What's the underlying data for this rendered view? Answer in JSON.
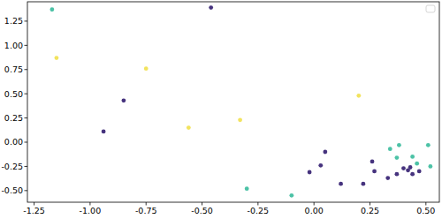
{
  "chart_data": {
    "type": "scatter",
    "series": [
      {
        "color": "#4cc2a6",
        "marker": "circle",
        "x": [
          -1.17,
          -0.3,
          -0.1,
          0.34,
          0.37,
          0.38,
          0.44,
          0.46,
          0.51,
          0.52
        ],
        "values": [
          1.37,
          -0.48,
          -0.55,
          -0.07,
          -0.16,
          -0.03,
          -0.15,
          -0.22,
          -0.03,
          -0.25
        ]
      },
      {
        "color": "#46337e",
        "marker": "circle",
        "x": [
          -0.46,
          -0.85,
          -0.94,
          0.05,
          0.03,
          -0.02,
          0.12,
          0.22,
          0.26,
          0.27,
          0.33,
          0.37,
          0.4,
          0.42,
          0.43,
          0.44,
          0.47
        ],
        "values": [
          1.39,
          0.43,
          0.11,
          -0.1,
          -0.24,
          -0.31,
          -0.43,
          -0.43,
          -0.2,
          -0.3,
          -0.37,
          -0.33,
          -0.27,
          -0.29,
          -0.26,
          -0.33,
          -0.3
        ]
      },
      {
        "color": "#f2e35e",
        "marker": "circle",
        "x": [
          -1.15,
          -0.75,
          -0.56,
          -0.33,
          0.2
        ],
        "values": [
          0.87,
          0.76,
          0.15,
          0.23,
          0.48
        ]
      }
    ],
    "xlim": [
      -1.28,
      0.56
    ],
    "ylim": [
      -0.62,
      1.45
    ],
    "xticks": [
      -1.25,
      {
        "value": -1,
        "label": "-1.00"
      },
      -0.75,
      {
        "value": -0.5,
        "label": "-0.50"
      },
      -0.25,
      {
        "value": 0,
        "label": "0.00"
      },
      0.25,
      {
        "value": 0.5,
        "label": "0.50"
      }
    ],
    "yticks": [
      {
        "value": -0.5,
        "label": "-0.50"
      },
      -0.25,
      {
        "value": 0,
        "label": "0.00"
      },
      0.25,
      {
        "value": 0.5,
        "label": "0.50"
      },
      0.75,
      {
        "value": 1,
        "label": "1.00"
      },
      1.25
    ],
    "grid": false,
    "legend": "upper right"
  }
}
